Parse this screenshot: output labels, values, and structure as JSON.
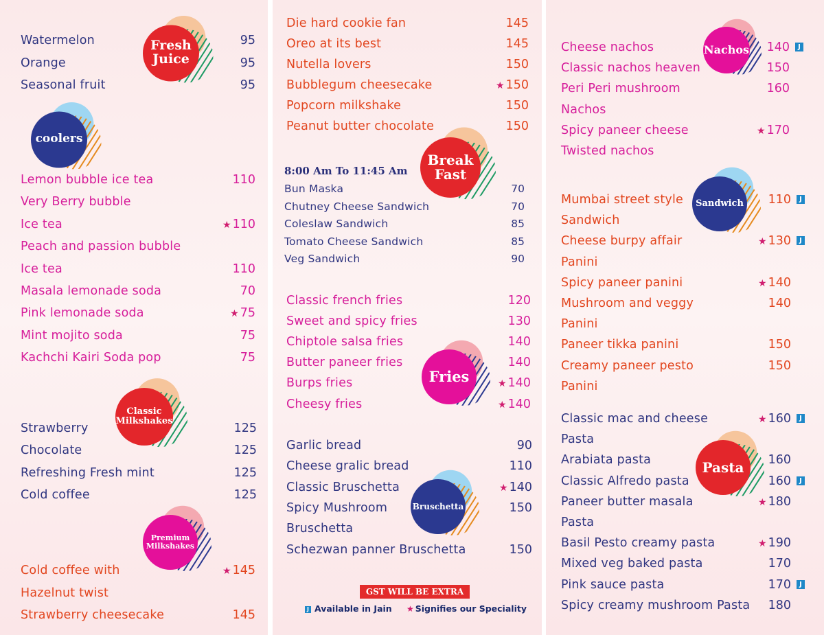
{
  "colors": {
    "blue": "#2f3580",
    "pink": "#d61d9a",
    "red": "#e2461f",
    "badge_red": "#e3262b",
    "badge_navy": "#2b3990",
    "badge_magenta": "#e4109a",
    "peach": "#f6c59c",
    "lightblue": "#9ed6f2",
    "lightpink": "#f4a9b1"
  },
  "icons": {
    "star": "star-icon",
    "jain": "jain-icon"
  },
  "badges": {
    "fresh_juice": [
      "Fresh",
      "Juice"
    ],
    "coolers": [
      "coolers"
    ],
    "classic_milkshakes": [
      "Classic",
      "Milkshakes"
    ],
    "premium_milkshakes": [
      "Premium",
      "Milkshakes"
    ],
    "breakfast": [
      "Break",
      "Fast"
    ],
    "fries": [
      "Fries"
    ],
    "bruschetta": [
      "Bruschetta"
    ],
    "nachos": [
      "Nachos"
    ],
    "sandwich": [
      "Sandwich"
    ],
    "pasta": [
      "Pasta"
    ]
  },
  "fresh_juice": [
    {
      "name": "Watermelon",
      "price": "95"
    },
    {
      "name": "Orange",
      "price": "95"
    },
    {
      "name": "Seasonal fruit",
      "price": "95"
    }
  ],
  "coolers": [
    {
      "name": "Lemon bubble ice tea",
      "price": "110"
    },
    {
      "name": "Very Berry bubble",
      "price": ""
    },
    {
      "name": "Ice tea",
      "price": "110",
      "star": true
    },
    {
      "name": "Peach and passion bubble",
      "price": ""
    },
    {
      "name": "Ice tea",
      "price": "110"
    },
    {
      "name": "Masala lemonade soda",
      "price": "70"
    },
    {
      "name": "Pink lemonade soda",
      "price": "75",
      "star": true
    },
    {
      "name": "Mint mojito soda",
      "price": "75"
    },
    {
      "name": "Kachchi Kairi Soda pop",
      "price": "75"
    }
  ],
  "classic_milkshakes": [
    {
      "name": "Strawberry",
      "price": "125"
    },
    {
      "name": "Chocolate",
      "price": "125"
    },
    {
      "name": "Refreshing Fresh mint",
      "price": "125"
    },
    {
      "name": "Cold coffee",
      "price": "125"
    }
  ],
  "premium_milkshakes": [
    {
      "name": "Cold coffee with",
      "price": "145",
      "star": true
    },
    {
      "name": "Hazelnut twist",
      "price": ""
    },
    {
      "name": "Strawberry cheesecake",
      "price": "145"
    }
  ],
  "shakes_top": [
    {
      "name": "Die hard cookie fan",
      "price": "145"
    },
    {
      "name": "Oreo at its best",
      "price": "145"
    },
    {
      "name": "Nutella lovers",
      "price": "150"
    },
    {
      "name": "Bubblegum cheesecake",
      "price": "150",
      "star": true
    },
    {
      "name": "Popcorn milkshake",
      "price": "150"
    },
    {
      "name": "Peanut butter chocolate",
      "price": "150"
    }
  ],
  "breakfast_time": "8:00 Am To 11:45 Am",
  "breakfast": [
    {
      "name": "Bun Maska",
      "price": "70"
    },
    {
      "name": "Chutney Cheese Sandwich",
      "price": "70"
    },
    {
      "name": "Coleslaw Sandwich",
      "price": "85"
    },
    {
      "name": "Tomato Cheese Sandwich",
      "price": "85"
    },
    {
      "name": "Veg Sandwich",
      "price": "90"
    }
  ],
  "fries": [
    {
      "name": "Classic french fries",
      "price": "120"
    },
    {
      "name": "Sweet and spicy fries",
      "price": "130"
    },
    {
      "name": "Chiptole salsa fries",
      "price": "140"
    },
    {
      "name": "Butter paneer fries",
      "price": "140"
    },
    {
      "name": "Burps fries",
      "price": "140",
      "star": true
    },
    {
      "name": "Cheesy fries",
      "price": "140",
      "star": true
    }
  ],
  "bruschetta": [
    {
      "name": "Garlic bread",
      "price": "90"
    },
    {
      "name": "Cheese gralic bread",
      "price": "110"
    },
    {
      "name": "Classic Bruschetta",
      "price": "140",
      "star": true
    },
    {
      "name": "Spicy Mushroom",
      "price": "150"
    },
    {
      "name": "Bruschetta",
      "price": ""
    },
    {
      "name": "Schezwan panner Bruschetta",
      "price": "150"
    }
  ],
  "gst": "GST WILL BE EXTRA",
  "legend": {
    "jain": "Available in Jain",
    "special": "Signifies our Speciality"
  },
  "nachos": [
    {
      "name": "Cheese nachos",
      "price": "140",
      "jain": true
    },
    {
      "name": "Classic nachos heaven",
      "price": "150"
    },
    {
      "name": "Peri Peri mushroom",
      "price": "160"
    },
    {
      "name": "Nachos",
      "price": ""
    },
    {
      "name": "Spicy paneer cheese",
      "price": "170",
      "star": true
    },
    {
      "name": "Twisted nachos",
      "price": ""
    }
  ],
  "sandwich": [
    {
      "name": "Mumbai street style",
      "price": "110",
      "jain": true
    },
    {
      "name": "Sandwich",
      "price": ""
    },
    {
      "name": "Cheese burpy affair",
      "price": "130",
      "star": true,
      "jain": true
    },
    {
      "name": "Panini",
      "price": ""
    },
    {
      "name": "Spicy paneer panini",
      "price": "140",
      "star": true
    },
    {
      "name": "Mushroom and veggy",
      "price": "140"
    },
    {
      "name": "Panini",
      "price": ""
    },
    {
      "name": "Paneer tikka panini",
      "price": "150"
    },
    {
      "name": "Creamy paneer pesto",
      "price": "150"
    },
    {
      "name": "Panini",
      "price": ""
    }
  ],
  "pasta": [
    {
      "name": "Classic mac and cheese",
      "price": "160",
      "star": true,
      "jain": true
    },
    {
      "name": "Pasta",
      "price": ""
    },
    {
      "name": "Arabiata pasta",
      "price": "160"
    },
    {
      "name": "Classic Alfredo pasta",
      "price": "160",
      "jain": true
    },
    {
      "name": "Paneer butter masala",
      "price": "180",
      "star": true
    },
    {
      "name": "Pasta",
      "price": ""
    },
    {
      "name": "Basil Pesto creamy pasta",
      "price": "190",
      "star": true
    },
    {
      "name": "Mixed veg baked pasta",
      "price": "170"
    },
    {
      "name": "Pink sauce pasta",
      "price": "170",
      "jain": true
    },
    {
      "name": "Spicy creamy mushroom Pasta",
      "price": "180"
    }
  ]
}
